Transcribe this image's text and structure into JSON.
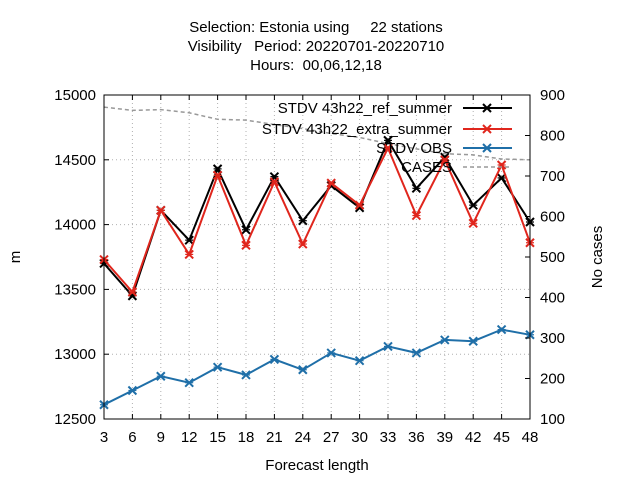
{
  "chart_data": {
    "type": "line",
    "title_lines": [
      "Selection: Estonia using     22 stations",
      "Visibility   Period: 20220701-20220710",
      "Hours:  00,06,12,18"
    ],
    "xlabel": "Forecast length",
    "ylabel": "m",
    "y2label": "No cases",
    "x": [
      3,
      6,
      9,
      12,
      15,
      18,
      21,
      24,
      27,
      30,
      33,
      36,
      39,
      42,
      45,
      48
    ],
    "ylim": [
      12500,
      15000
    ],
    "y_ticks": [
      12500,
      13000,
      13500,
      14000,
      14500,
      15000
    ],
    "y2lim": [
      100,
      900
    ],
    "y2_ticks": [
      100,
      200,
      300,
      400,
      500,
      600,
      700,
      800,
      900
    ],
    "grid": true,
    "legend_position": "top-right",
    "series": [
      {
        "name": "STDV 43h22_ref_summer",
        "legend_text": "STDV 43h22_ref_summer",
        "color": "#000000",
        "axis": "y",
        "marker": "cross",
        "values": [
          13700,
          13450,
          14110,
          13880,
          14430,
          13960,
          14370,
          14030,
          14300,
          14130,
          14650,
          14280,
          14520,
          14150,
          14360,
          14020
        ]
      },
      {
        "name": "STDV 43h22_extra_summer",
        "legend_text": "STDV 43h22_extra_summer",
        "color": "#e0261d",
        "axis": "y",
        "marker": "cross",
        "values": [
          13730,
          13480,
          14110,
          13770,
          14380,
          13840,
          14330,
          13850,
          14320,
          14150,
          14590,
          14070,
          14500,
          14010,
          14460,
          13860
        ]
      },
      {
        "name": "STDV OBS",
        "legend_text": "STDV OBS",
        "color": "#1f6fa8",
        "axis": "y",
        "marker": "cross",
        "values": [
          12610,
          12720,
          12830,
          12780,
          12900,
          12840,
          12960,
          12880,
          13010,
          12950,
          13060,
          13010,
          13110,
          13100,
          13190,
          13150
        ]
      },
      {
        "name": "CASES",
        "legend_text": "CASES",
        "color": "#999999",
        "axis": "y2",
        "dashed": true,
        "values": [
          870,
          862,
          864,
          856,
          840,
          838,
          827,
          817,
          805,
          795,
          780,
          767,
          755,
          752,
          742,
          740
        ]
      }
    ]
  }
}
